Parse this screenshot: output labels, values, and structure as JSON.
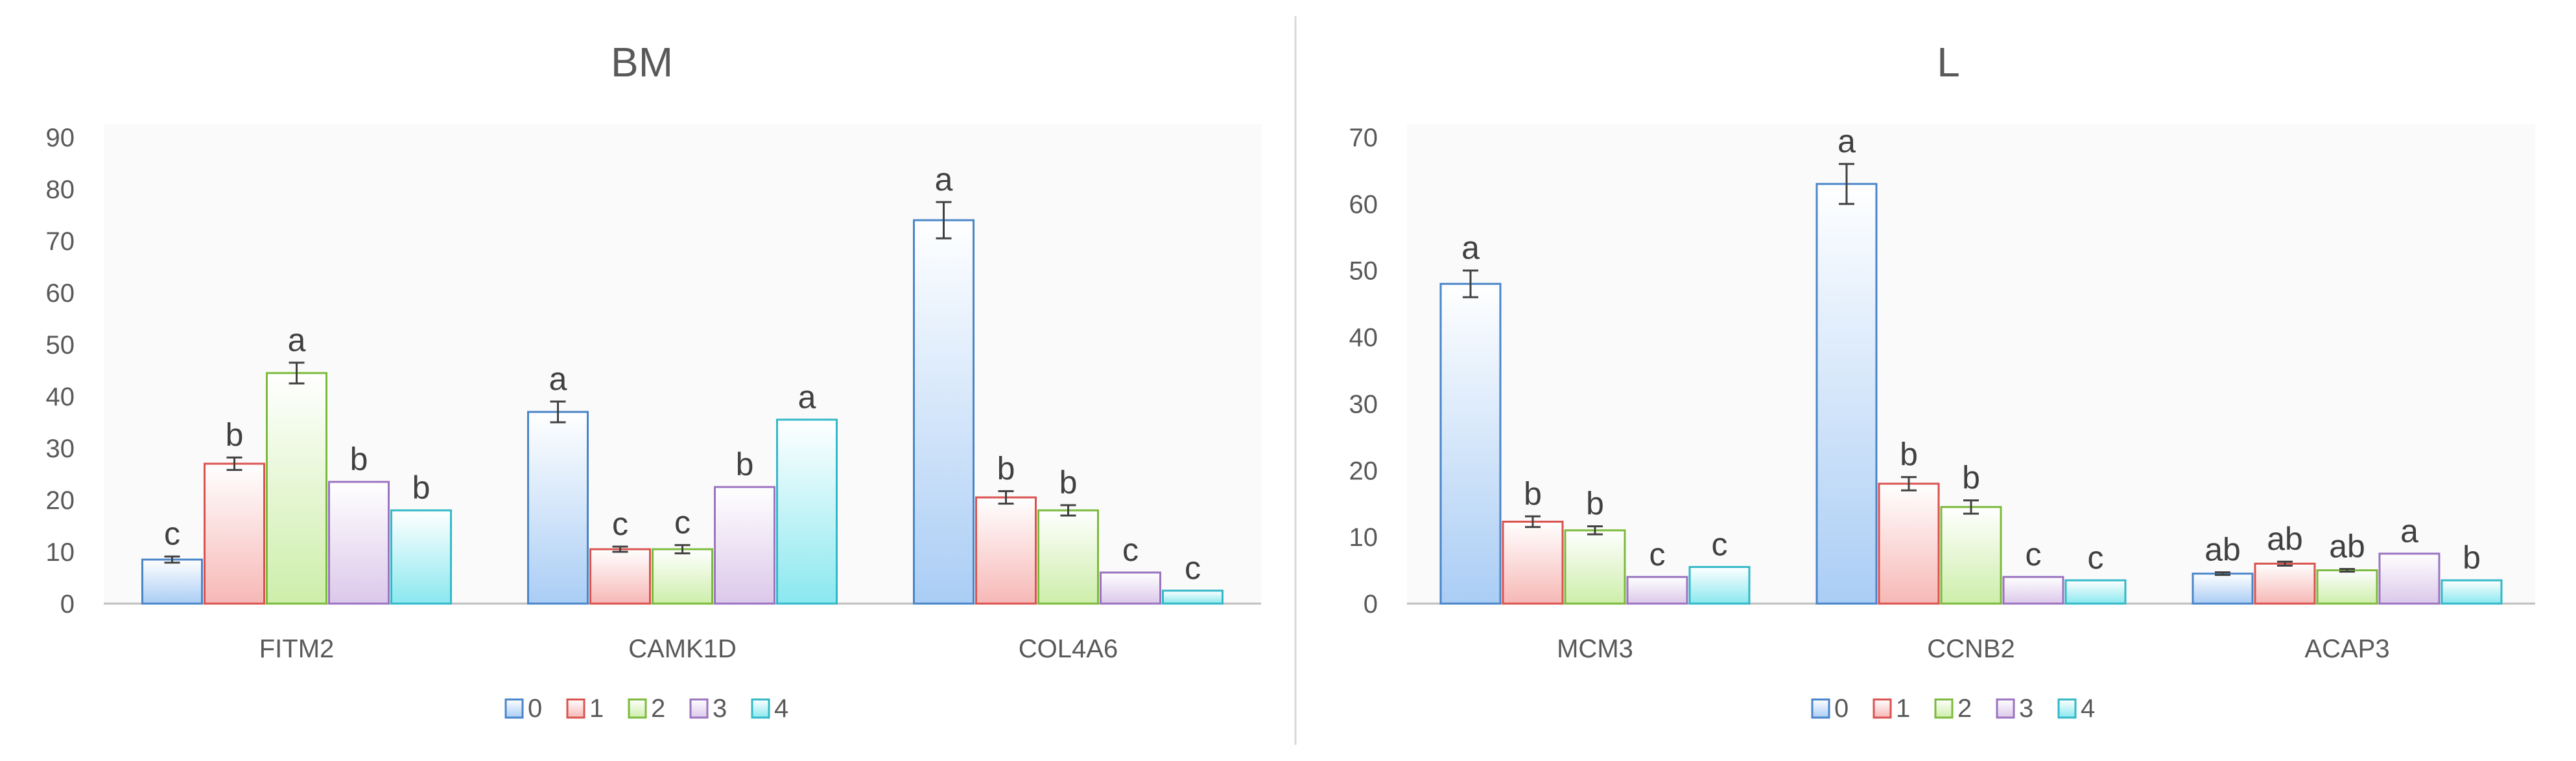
{
  "chart_data": [
    {
      "type": "bar",
      "title": "BM",
      "xlabel": "",
      "ylabel": "",
      "ylim": [
        0,
        90
      ],
      "yticks": [
        0,
        10,
        20,
        30,
        40,
        50,
        60,
        70,
        80,
        90
      ],
      "grid": false,
      "legend_position": "bottom",
      "categories": [
        "FITM2",
        "CAMK1D",
        "COL4A6"
      ],
      "series": [
        {
          "name": "0",
          "values": [
            8.5,
            37,
            74
          ],
          "errors": [
            0.6,
            2,
            3.5
          ],
          "letters": [
            "c",
            "a",
            "a"
          ]
        },
        {
          "name": "1",
          "values": [
            27,
            10.5,
            20.5
          ],
          "errors": [
            1.2,
            0.5,
            1.2
          ],
          "letters": [
            "b",
            "c",
            "b"
          ]
        },
        {
          "name": "2",
          "values": [
            44.5,
            10.5,
            18
          ],
          "errors": [
            2,
            0.8,
            1
          ],
          "letters": [
            "a",
            "c",
            "b"
          ]
        },
        {
          "name": "3",
          "values": [
            23.5,
            22.5,
            6
          ],
          "errors": [
            0,
            0,
            0
          ],
          "letters": [
            "b",
            "b",
            "c"
          ]
        },
        {
          "name": "4",
          "values": [
            18,
            35.5,
            2.5
          ],
          "errors": [
            0,
            0,
            0
          ],
          "letters": [
            "b",
            "a",
            "c"
          ]
        }
      ]
    },
    {
      "type": "bar",
      "title": "L",
      "xlabel": "",
      "ylabel": "",
      "ylim": [
        0,
        70
      ],
      "yticks": [
        0,
        10,
        20,
        30,
        40,
        50,
        60,
        70
      ],
      "grid": false,
      "legend_position": "bottom",
      "categories": [
        "MCM3",
        "CCNB2",
        "ACAP3"
      ],
      "series": [
        {
          "name": "0",
          "values": [
            48,
            63,
            4.5
          ],
          "errors": [
            2,
            3,
            0.2
          ],
          "letters": [
            "a",
            "a",
            "ab"
          ]
        },
        {
          "name": "1",
          "values": [
            12.3,
            18,
            6
          ],
          "errors": [
            0.8,
            1,
            0.3
          ],
          "letters": [
            "b",
            "b",
            "ab"
          ]
        },
        {
          "name": "2",
          "values": [
            11,
            14.5,
            5
          ],
          "errors": [
            0.6,
            1,
            0.2
          ],
          "letters": [
            "b",
            "b",
            "ab"
          ]
        },
        {
          "name": "3",
          "values": [
            4,
            4,
            7.5
          ],
          "errors": [
            0,
            0,
            0
          ],
          "letters": [
            "c",
            "c",
            "a"
          ]
        },
        {
          "name": "4",
          "values": [
            5.5,
            3.5,
            3.5
          ],
          "errors": [
            0,
            0,
            0
          ],
          "letters": [
            "c",
            "c",
            "b"
          ]
        }
      ]
    }
  ],
  "colors": {
    "series_fill": [
      "#aacdf5",
      "#f6b8b6",
      "#cdeeaa",
      "#dcc8ea",
      "#8ae8ef"
    ],
    "series_stroke": [
      "#4a85c8",
      "#d9534f",
      "#7cba3c",
      "#9b74c0",
      "#33b8c8"
    ],
    "axis": "#bfbfbf",
    "text": "#595959",
    "divider": "#d9d9d9"
  }
}
